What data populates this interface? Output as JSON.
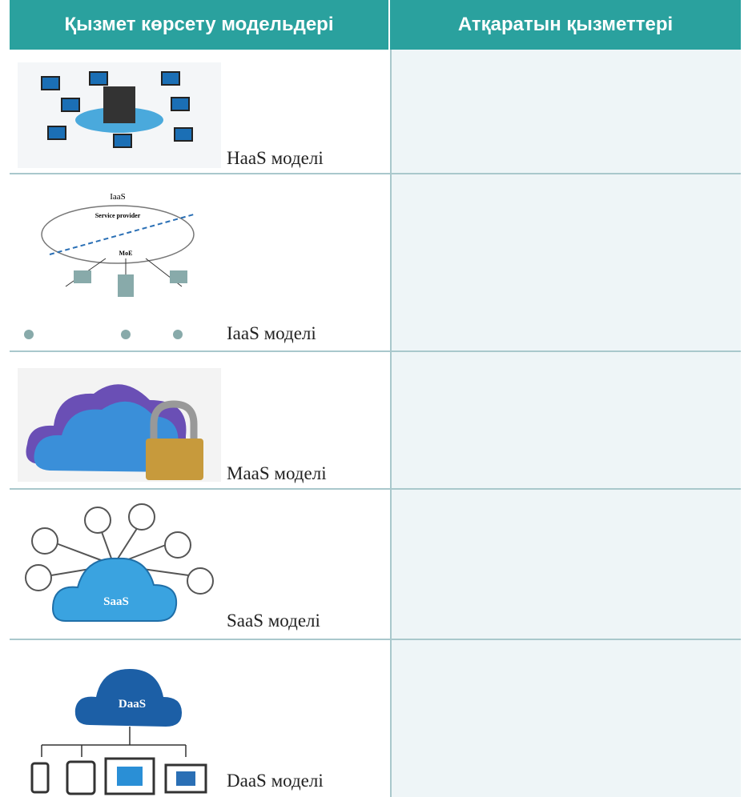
{
  "table": {
    "headers": [
      "Қызмет көрсету модельдері",
      "Атқаратын қызметтері"
    ],
    "rows": [
      {
        "label": "HaaS моделі"
      },
      {
        "label": "IaaS моделі",
        "image_texts": [
          "IaaS",
          "Service provider",
          "MoE"
        ]
      },
      {
        "label": "MaaS моделі"
      },
      {
        "label": "SaaS моделі",
        "image_texts": [
          "SaaS"
        ]
      },
      {
        "label": "DaaS моделі",
        "image_texts": [
          "DaaS"
        ]
      }
    ]
  }
}
